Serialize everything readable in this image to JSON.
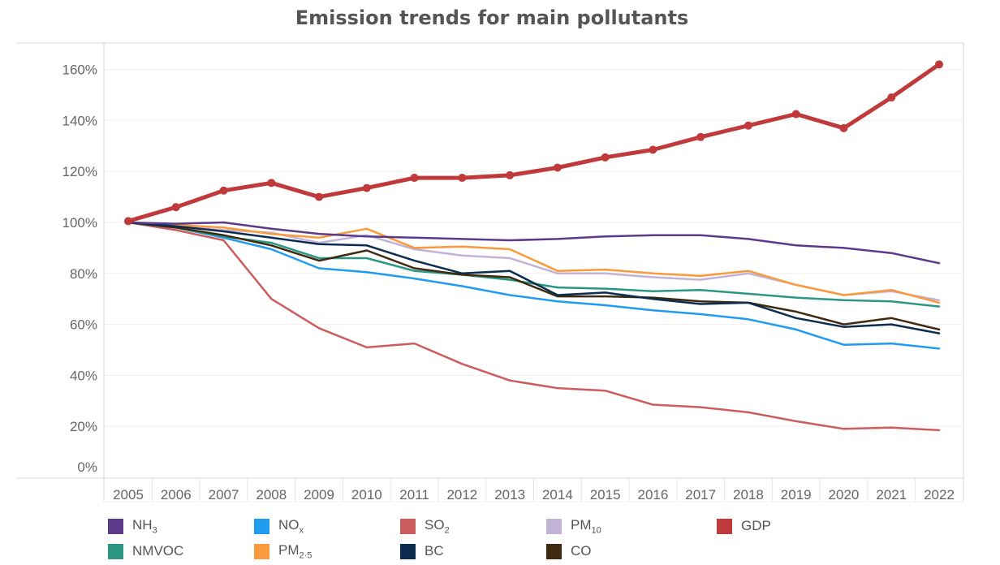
{
  "chart_data": {
    "type": "line",
    "title": "Emission trends for main pollutants",
    "x": [
      2005,
      2006,
      2007,
      2008,
      2009,
      2010,
      2011,
      2012,
      2013,
      2014,
      2015,
      2016,
      2017,
      2018,
      2019,
      2020,
      2021,
      2022
    ],
    "ylim": [
      0,
      170
    ],
    "yticks": [
      0,
      20,
      40,
      60,
      80,
      100,
      120,
      140,
      160
    ],
    "ytick_labels": [
      "0%",
      "20%",
      "40%",
      "60%",
      "80%",
      "100%",
      "120%",
      "140%",
      "160%"
    ],
    "grid": true,
    "legend_position": "bottom",
    "series": [
      {
        "key": "nh3",
        "name": "NH₃",
        "name_base": "NH",
        "name_sub": "3",
        "color": "#5b3a8c",
        "width": 2.5,
        "markers": false,
        "values": [
          100,
          99.5,
          100,
          97.5,
          95.5,
          94.5,
          94,
          93.5,
          93,
          93.5,
          94.5,
          95,
          95,
          93.5,
          91,
          90,
          88,
          84
        ]
      },
      {
        "key": "nox",
        "name": "NOₓ",
        "name_base": "NO",
        "name_sub": "x",
        "color": "#1f9bf0",
        "width": 2.5,
        "markers": false,
        "values": [
          100,
          98,
          94,
          89.5,
          82,
          80.5,
          78,
          75,
          71.5,
          69,
          67.5,
          65.5,
          64,
          62,
          58,
          52,
          52.5,
          50.5
        ]
      },
      {
        "key": "so2",
        "name": "SO₂",
        "name_base": "SO",
        "name_sub": "2",
        "color": "#cd5c5c",
        "width": 2.5,
        "markers": false,
        "values": [
          100,
          97,
          93,
          70,
          58.5,
          51,
          52.5,
          44.5,
          38,
          35,
          34,
          28.5,
          27.5,
          25.5,
          22,
          19,
          19.5,
          18.5
        ]
      },
      {
        "key": "pm10",
        "name": "PM₁₀",
        "name_base": "PM",
        "name_sub": "10",
        "color": "#c2b3d6",
        "width": 2.5,
        "markers": false,
        "values": [
          100,
          98.5,
          97,
          96,
          92,
          95,
          89.5,
          87,
          86,
          80,
          80,
          78.5,
          77.5,
          80,
          75.5,
          71.5,
          73,
          69.5
        ]
      },
      {
        "key": "nmvoc",
        "name": "NMVOC",
        "name_base": "NMVOC",
        "name_sub": "",
        "color": "#2a9683",
        "width": 2.5,
        "markers": false,
        "values": [
          100,
          98,
          94.5,
          92,
          86,
          86,
          81,
          79.5,
          77.5,
          74.5,
          74,
          73,
          73.5,
          72,
          70.5,
          69.5,
          69,
          67
        ]
      },
      {
        "key": "pm25",
        "name": "PM₂.₅",
        "name_base": "PM",
        "name_sub": "2.5",
        "color": "#fb9a3c",
        "width": 2.5,
        "markers": false,
        "values": [
          100,
          99,
          98,
          95.5,
          94,
          97.5,
          90,
          90.5,
          89.5,
          81,
          81.5,
          80,
          79,
          81,
          75.5,
          71.5,
          73.5,
          68.5
        ]
      },
      {
        "key": "bc",
        "name": "BC",
        "name_base": "BC",
        "name_sub": "",
        "color": "#0c2d4f",
        "width": 2.5,
        "markers": false,
        "values": [
          100,
          98.5,
          96.5,
          94,
          91.5,
          91,
          85,
          80,
          81,
          71.5,
          72.5,
          70,
          68,
          68.5,
          62.5,
          59,
          60,
          56.5
        ]
      },
      {
        "key": "co",
        "name": "CO",
        "name_base": "CO",
        "name_sub": "",
        "color": "#3f2a10",
        "width": 2.5,
        "markers": false,
        "values": [
          100,
          98,
          95,
          91,
          85,
          89,
          82,
          79.5,
          78.5,
          71,
          71,
          70.5,
          69,
          68.5,
          65,
          60,
          62.5,
          58
        ]
      },
      {
        "key": "gdp",
        "name": "GDP",
        "name_base": "GDP",
        "name_sub": "",
        "color": "#c0393b",
        "width": 5,
        "markers": true,
        "values": [
          100.5,
          106,
          112.5,
          115.5,
          110,
          113.5,
          117.5,
          117.5,
          118.5,
          121.5,
          125.5,
          128.5,
          133.5,
          138,
          142.5,
          137,
          149,
          162
        ]
      }
    ]
  }
}
